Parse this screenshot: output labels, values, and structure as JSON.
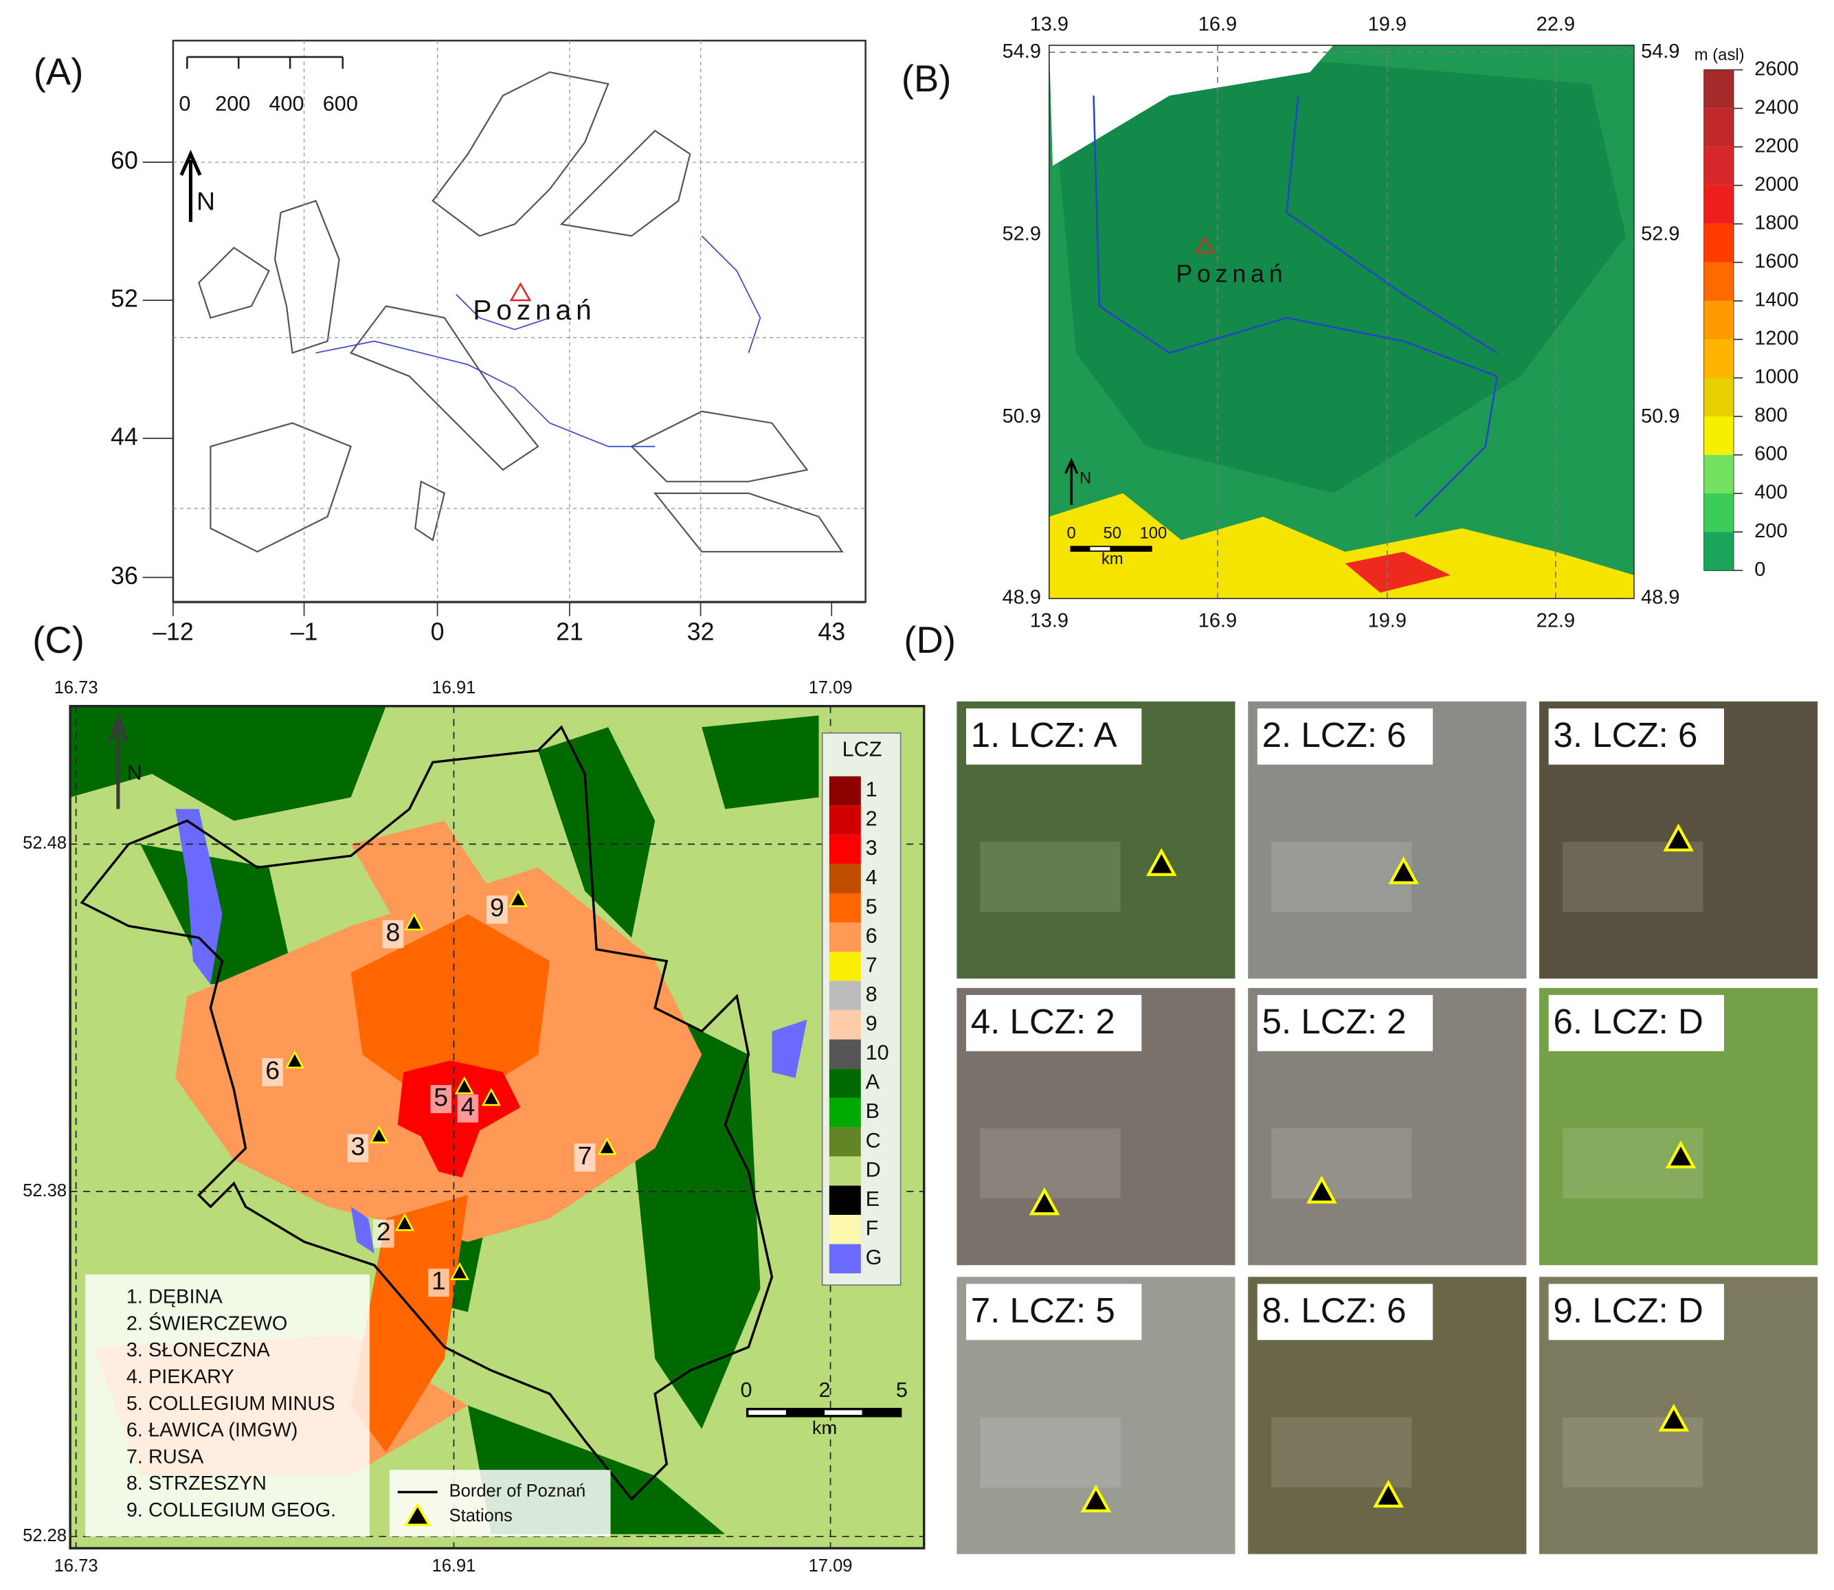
{
  "panels": {
    "a": {
      "label": "(A)",
      "scale": [
        "0",
        "200",
        "400",
        "600"
      ],
      "north": "N",
      "lat_ticks": [
        "60",
        "52",
        "44",
        "36"
      ],
      "lon_ticks": [
        "–12",
        "–1",
        "0",
        "21",
        "32",
        "43"
      ],
      "city": "Poznań"
    },
    "b": {
      "label": "(B)",
      "lon_ticks": [
        "13.9",
        "16.9",
        "19.9",
        "22.9"
      ],
      "lat_ticks": [
        "54.9",
        "52.9",
        "50.9",
        "48.9"
      ],
      "city": "Poznań",
      "north": "N",
      "scale": [
        "0",
        "50",
        "100"
      ],
      "scale_unit": "km",
      "colorbar": {
        "title": "m (asl)",
        "ticks": [
          2600,
          2400,
          2200,
          2000,
          1800,
          1600,
          1400,
          1200,
          1000,
          800,
          600,
          400,
          200,
          0
        ],
        "colors": [
          "#a52a2a",
          "#c0282a",
          "#d8262a",
          "#ee1e1e",
          "#ff3b00",
          "#ff6a00",
          "#ff9a00",
          "#ffb400",
          "#e8d000",
          "#f4f000",
          "#74e060",
          "#3ccc5a",
          "#1aa55a"
        ]
      }
    },
    "c": {
      "label": "(C)",
      "lon_ticks": [
        "16.73",
        "16.91",
        "17.09"
      ],
      "lat_ticks": [
        "52.48",
        "52.38",
        "52.28"
      ],
      "north": "N",
      "lcz": {
        "title": "LCZ",
        "classes": [
          {
            "name": "1",
            "color": "#8c0000"
          },
          {
            "name": "2",
            "color": "#d10000"
          },
          {
            "name": "3",
            "color": "#ff0000"
          },
          {
            "name": "4",
            "color": "#bf4d00"
          },
          {
            "name": "5",
            "color": "#ff6600"
          },
          {
            "name": "6",
            "color": "#ff9955"
          },
          {
            "name": "7",
            "color": "#faee05"
          },
          {
            "name": "8",
            "color": "#bcbcbc"
          },
          {
            "name": "9",
            "color": "#ffccaa"
          },
          {
            "name": "10",
            "color": "#555555"
          },
          {
            "name": "A",
            "color": "#006a00"
          },
          {
            "name": "B",
            "color": "#00aa00"
          },
          {
            "name": "C",
            "color": "#648525"
          },
          {
            "name": "D",
            "color": "#b9db79"
          },
          {
            "name": "E",
            "color": "#000000"
          },
          {
            "name": "F",
            "color": "#fbf7ae"
          },
          {
            "name": "G",
            "color": "#6a6aff"
          }
        ]
      },
      "stations": [
        {
          "marker": "1",
          "name": "1. DĘBINA"
        },
        {
          "marker": "2",
          "name": "2. ŚWIERCZEWO"
        },
        {
          "marker": "3",
          "name": "3. SŁONECZNA"
        },
        {
          "marker": "4",
          "name": "4. PIEKARY"
        },
        {
          "marker": "5",
          "name": "5. COLLEGIUM MINUS"
        },
        {
          "marker": "6",
          "name": "6. ŁAWICA (IMGW)"
        },
        {
          "marker": "7",
          "name": "7. RUSA"
        },
        {
          "marker": "8",
          "name": "8. STRZESZYN"
        },
        {
          "marker": "9",
          "name": "9. COLLEGIUM GEOG."
        }
      ],
      "scale": [
        "0",
        "2",
        "5"
      ],
      "scale_unit": "km",
      "border_label": "Border of Poznań",
      "stations_label": "Stations"
    },
    "d": {
      "label": "(D)",
      "tiles": [
        "1. LCZ: A",
        "2. LCZ: 6",
        "3. LCZ: 6",
        "4. LCZ: 2",
        "5. LCZ: 2",
        "6. LCZ: D",
        "7. LCZ: 5",
        "8. LCZ: 6",
        "9. LCZ: D"
      ]
    }
  }
}
